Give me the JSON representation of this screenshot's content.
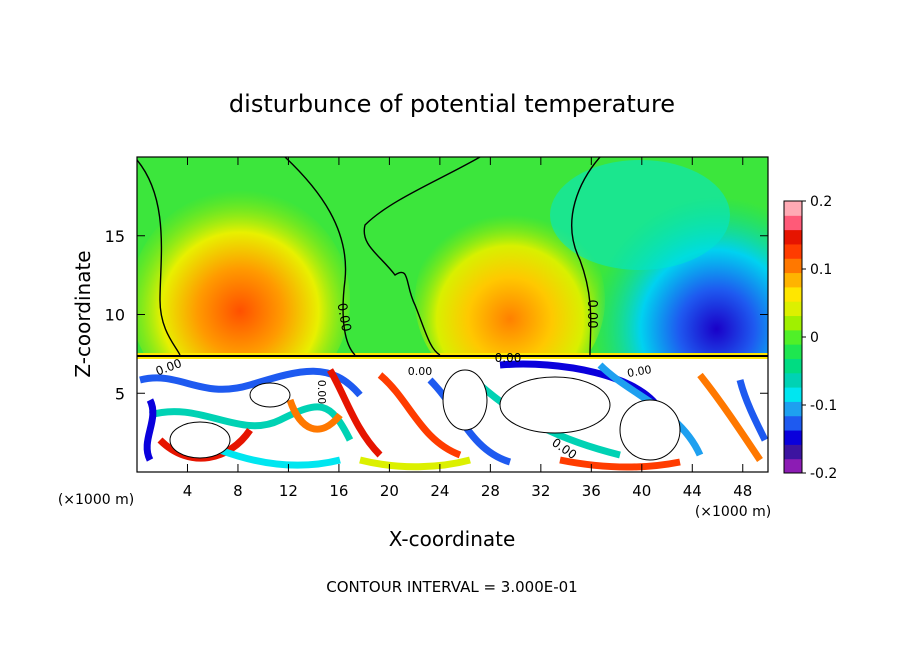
{
  "chart_data": {
    "type": "heatmap",
    "title": "disturbunce of potential temperature",
    "xlabel": "X-coordinate",
    "ylabel": "Z-coordinate",
    "x_unit_left": "(×1000 m)",
    "x_unit_right": "(×1000 m)",
    "xlim": [
      0,
      50
    ],
    "ylim": [
      0,
      20
    ],
    "x_ticks": [
      4,
      8,
      12,
      16,
      20,
      24,
      28,
      32,
      36,
      40,
      44,
      48
    ],
    "y_ticks": [
      5,
      10,
      15
    ],
    "colorbar": {
      "range": [
        -0.2,
        0.2
      ],
      "tick_labels": [
        "0.2",
        "0.1",
        "0",
        "-0.1",
        "-0.2"
      ],
      "tick_values": [
        0.2,
        0.1,
        0,
        -0.1,
        -0.2
      ],
      "colors": [
        "#8c1cb4",
        "#3c14a0",
        "#0a00dc",
        "#1e5af0",
        "#1ea0f0",
        "#00e6f0",
        "#00d2b4",
        "#00dc82",
        "#1ee650",
        "#50f028",
        "#a0f000",
        "#dcf000",
        "#ffe600",
        "#ffb400",
        "#ff7800",
        "#ff3c00",
        "#e61400",
        "#ff5a78",
        "#ffaab4"
      ]
    },
    "contour_labels": [
      "0.00",
      "0.00",
      "0.00",
      "0.00",
      "0.00",
      "0.00",
      "0.00",
      "0.00"
    ],
    "footer": "CONTOUR INTERVAL = 3.000E-01"
  }
}
